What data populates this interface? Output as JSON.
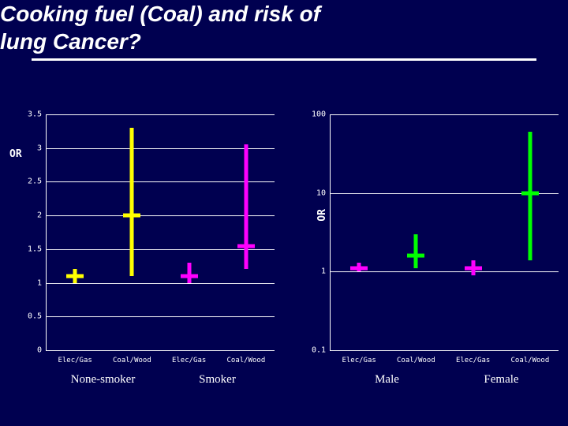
{
  "title_line1": "Cooking fuel (Coal) and risk of",
  "title_line2": "lung Cancer?",
  "left_chart": {
    "ylabel": "OR",
    "scale": "linear",
    "ymin": 0,
    "ymax": 3.5,
    "yticks": [
      0,
      0.5,
      1,
      1.5,
      2,
      2.5,
      3,
      3.5
    ],
    "ytick_labels": [
      "0",
      "0.5",
      "1",
      "1.5",
      "2",
      "2.5",
      "3",
      "3.5"
    ],
    "categories": [
      "Elec/Gas",
      "Coal/Wood",
      "Elec/Gas",
      "Coal/Wood"
    ],
    "groups": [
      "None-smoker",
      "Smoker"
    ],
    "series": [
      {
        "lo": 1.0,
        "hi": 1.2,
        "close": 1.1,
        "color": "#ffff00"
      },
      {
        "lo": 1.1,
        "hi": 3.3,
        "close": 2.0,
        "color": "#ffff00"
      },
      {
        "lo": 1.0,
        "hi": 1.3,
        "close": 1.1,
        "color": "#ff00ff"
      },
      {
        "lo": 1.2,
        "hi": 3.05,
        "close": 1.55,
        "color": "#ff00ff"
      }
    ]
  },
  "right_chart": {
    "ylabel": "OR",
    "scale": "log",
    "ymin": 0.1,
    "ymax": 100,
    "yticks": [
      0.1,
      1,
      10,
      100
    ],
    "ytick_labels": [
      "0.1",
      "1",
      "10",
      "100"
    ],
    "categories": [
      "Elec/Gas",
      "Coal/Wood",
      "Elec/Gas",
      "Coal/Wood"
    ],
    "groups": [
      "Male",
      "Female"
    ],
    "series": [
      {
        "lo": 1.0,
        "hi": 1.3,
        "close": 1.1,
        "color": "#ff00ff"
      },
      {
        "lo": 1.1,
        "hi": 3.0,
        "close": 1.6,
        "color": "#00ff00"
      },
      {
        "lo": 0.9,
        "hi": 1.4,
        "close": 1.1,
        "color": "#ff00ff"
      },
      {
        "lo": 1.4,
        "hi": 60,
        "close": 10,
        "color": "#00ff00"
      }
    ]
  },
  "colors": {
    "background": "#000050",
    "axis": "#ffffff",
    "text": "#ffffff"
  }
}
